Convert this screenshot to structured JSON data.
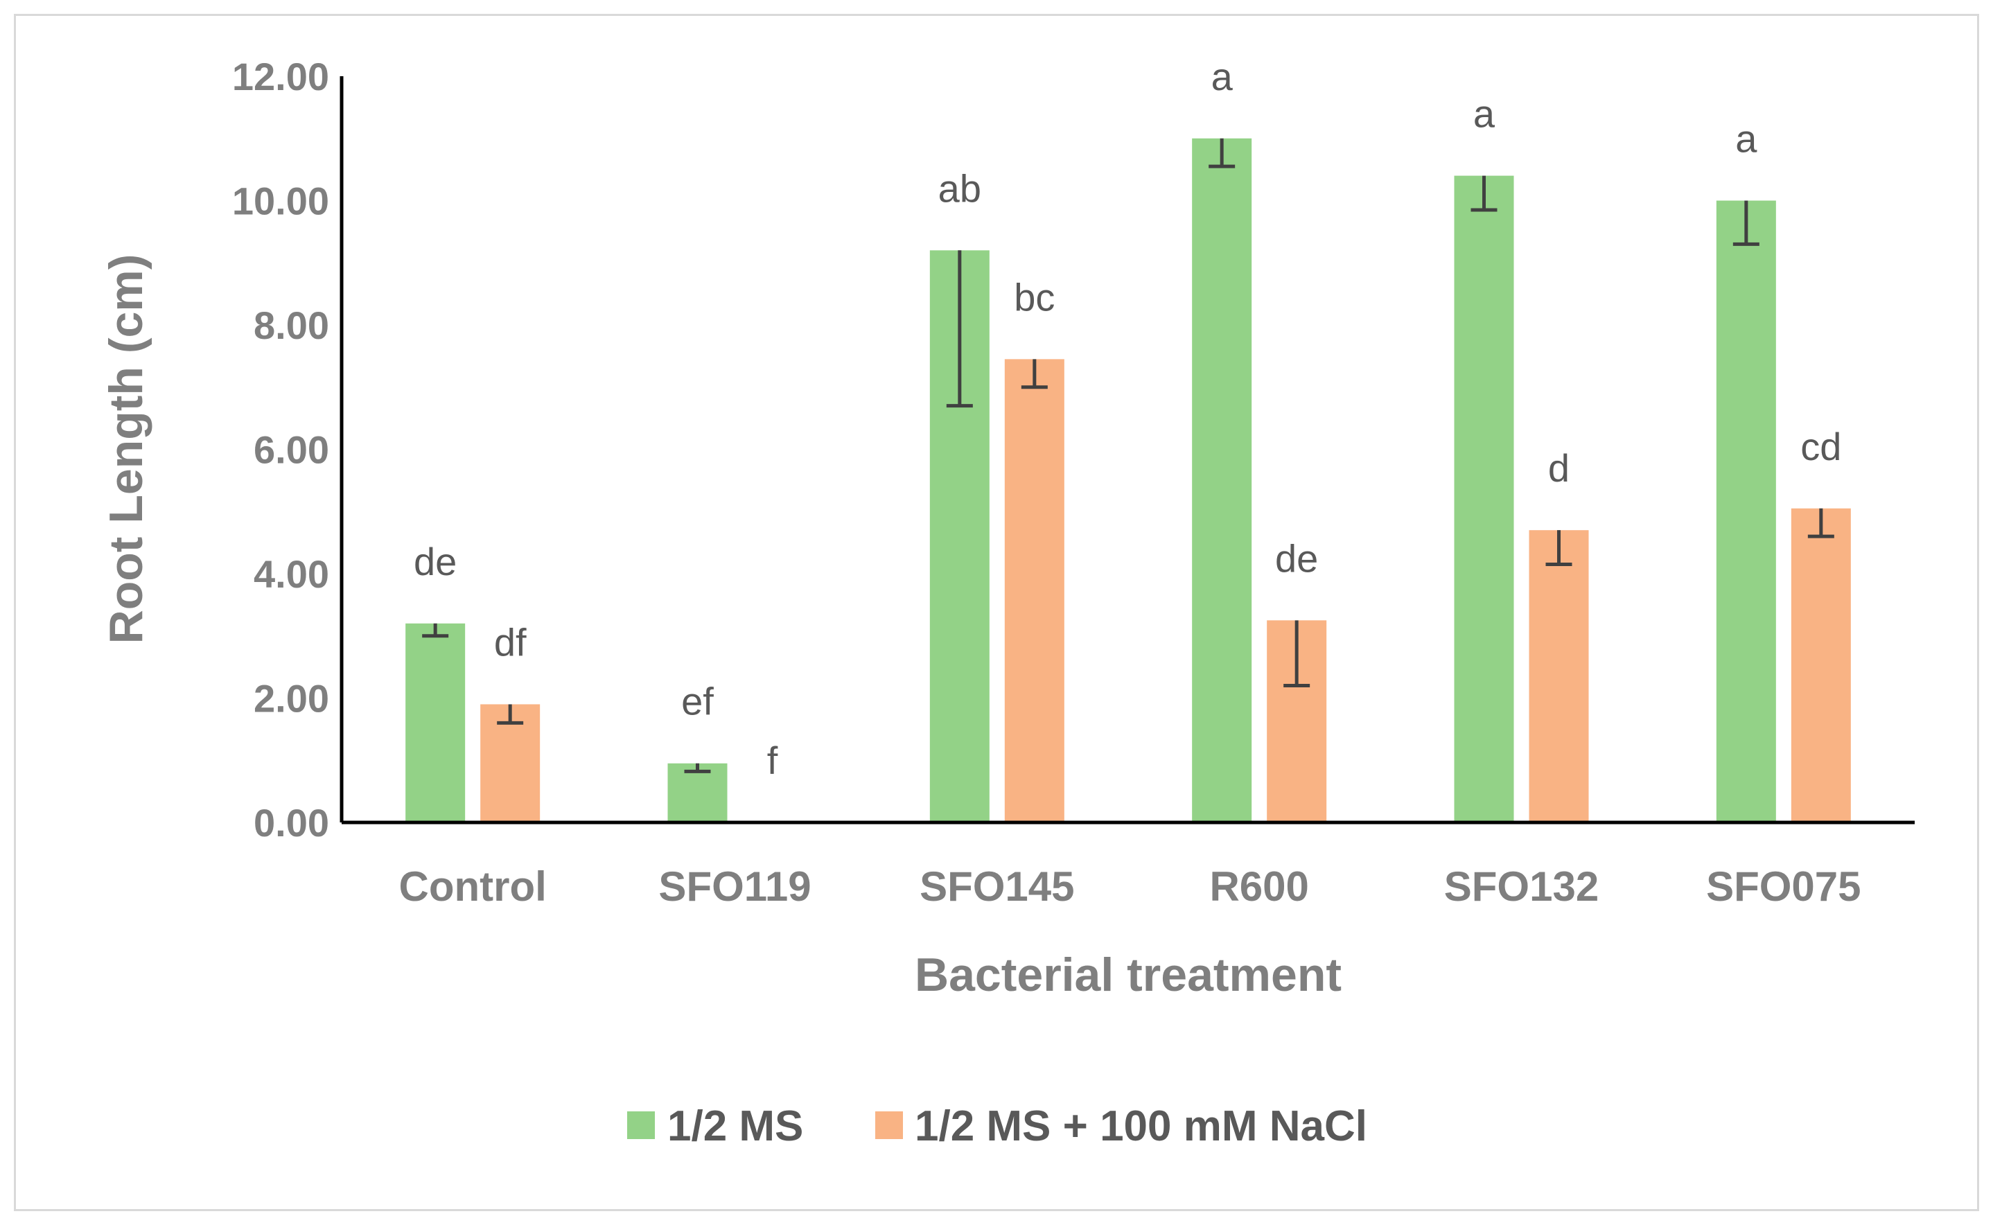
{
  "chart_data": {
    "type": "bar",
    "title": "",
    "xlabel": "Bacterial treatment",
    "ylabel": "Root Length (cm)",
    "ylim": [
      0,
      12
    ],
    "yticks": [
      0,
      2,
      4,
      6,
      8,
      10,
      12
    ],
    "ytick_labels": [
      "0.00",
      "2.00",
      "4.00",
      "6.00",
      "8.00",
      "10.00",
      "12.00"
    ],
    "categories": [
      "Control",
      "SFO119",
      "SFO145",
      "R600",
      "SFO132",
      "SFO075"
    ],
    "series": [
      {
        "name": "1/2 MS",
        "color": "#93d287",
        "values": [
          3.2,
          0.95,
          9.2,
          11.0,
          10.4,
          10.0
        ],
        "error_low": [
          3.0,
          0.82,
          6.7,
          10.55,
          9.85,
          9.3
        ],
        "sig_letters": [
          "de",
          "ef",
          "ab",
          "a",
          "a",
          "a"
        ]
      },
      {
        "name": "1/2 MS + 100 mM NaCl",
        "color": "#f9b384",
        "values": [
          1.9,
          0.0,
          7.45,
          3.25,
          4.7,
          5.05
        ],
        "error_low": [
          1.6,
          0.0,
          7.0,
          2.2,
          4.15,
          4.6
        ],
        "sig_letters": [
          "df",
          "f",
          "bc",
          "de",
          "d",
          "cd"
        ]
      }
    ],
    "legend": "bottom",
    "grid": false
  }
}
